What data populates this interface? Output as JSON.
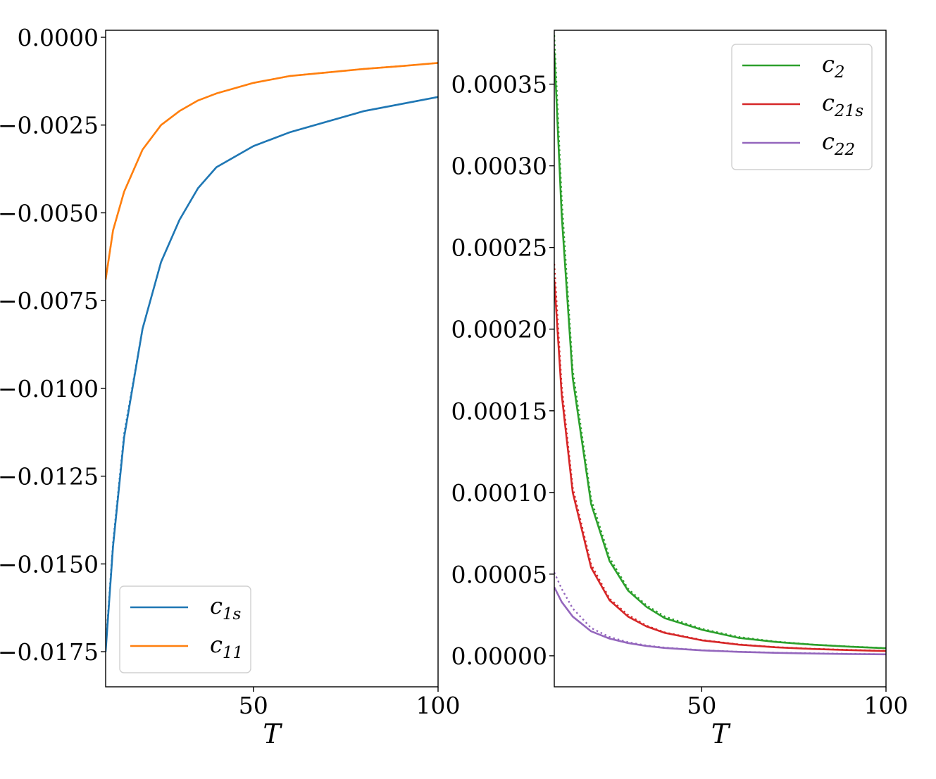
{
  "chart_data": [
    {
      "type": "line",
      "xlabel": "T",
      "ylabel": "",
      "xlim": [
        10,
        100
      ],
      "ylim": [
        -0.0185,
        0.0002
      ],
      "xticks": [
        "50",
        "100"
      ],
      "yticks": [
        "0.0000",
        "−0.0025",
        "−0.0050",
        "−0.0075",
        "−0.0100",
        "−0.0125",
        "−0.0150",
        "−0.0175"
      ],
      "legend_position": "lower-left",
      "series": [
        {
          "name": "c1s",
          "name_base": "c",
          "name_sub": "1s",
          "color": "#1f77b4",
          "x": [
            10,
            12,
            15,
            20,
            25,
            30,
            35,
            40,
            50,
            60,
            70,
            80,
            90,
            100
          ],
          "values": [
            -0.0175,
            -0.0145,
            -0.0114,
            -0.0083,
            -0.0064,
            -0.0052,
            -0.0043,
            -0.0037,
            -0.0031,
            -0.0027,
            -0.0024,
            -0.0021,
            -0.0019,
            -0.0017
          ],
          "dotted_values": [
            -0.0174,
            -0.0144,
            -0.0113,
            -0.0083,
            -0.0064,
            -0.0052,
            -0.0043,
            -0.0037,
            -0.0031,
            -0.0027,
            -0.0024,
            -0.0021,
            -0.0019,
            -0.0017
          ]
        },
        {
          "name": "c11",
          "name_base": "c",
          "name_sub": "11",
          "color": "#ff7f0e",
          "x": [
            10,
            12,
            15,
            20,
            25,
            30,
            35,
            40,
            50,
            60,
            70,
            80,
            90,
            100
          ],
          "values": [
            -0.0069,
            -0.0055,
            -0.0044,
            -0.0032,
            -0.0025,
            -0.0021,
            -0.0018,
            -0.0016,
            -0.0013,
            -0.0011,
            -0.001,
            -0.0009,
            -0.00082,
            -0.00073
          ],
          "dotted_values": [
            -0.0069,
            -0.0055,
            -0.0044,
            -0.0032,
            -0.0025,
            -0.0021,
            -0.0018,
            -0.0016,
            -0.0013,
            -0.0011,
            -0.001,
            -0.0009,
            -0.00082,
            -0.00073
          ]
        }
      ]
    },
    {
      "type": "line",
      "xlabel": "T",
      "ylabel": "",
      "xlim": [
        10,
        100
      ],
      "ylim": [
        -1.9e-05,
        0.000383
      ],
      "xticks": [
        "50",
        "100"
      ],
      "yticks": [
        "0.00000",
        "0.00005",
        "0.00010",
        "0.00015",
        "0.00020",
        "0.00025",
        "0.00030",
        "0.00035"
      ],
      "legend_position": "top-right",
      "series": [
        {
          "name": "c2",
          "name_base": "c",
          "name_sub": "2",
          "color": "#2ca02c",
          "x": [
            10,
            12,
            15,
            20,
            25,
            30,
            35,
            40,
            50,
            60,
            70,
            80,
            90,
            100
          ],
          "values": [
            0.00037,
            0.00027,
            0.00017,
            9.3e-05,
            5.8e-05,
            4e-05,
            3e-05,
            2.3e-05,
            1.6e-05,
            1.1e-05,
            8.5e-06,
            6.8e-06,
            5.6e-06,
            4.6e-06
          ],
          "dotted_values": [
            0.00038,
            0.00028,
            0.000175,
            9.6e-05,
            6e-05,
            4.1e-05,
            3.1e-05,
            2.4e-05,
            1.65e-05,
            1.15e-05,
            8.7e-06,
            6.9e-06,
            5.7e-06,
            4.7e-06
          ]
        },
        {
          "name": "c21s",
          "name_base": "c",
          "name_sub": "21s",
          "color": "#d62728",
          "x": [
            10,
            12,
            15,
            20,
            25,
            30,
            35,
            40,
            50,
            60,
            70,
            80,
            90,
            100
          ],
          "values": [
            0.00023,
            0.00016,
            0.0001,
            5.4e-05,
            3.4e-05,
            2.4e-05,
            1.8e-05,
            1.4e-05,
            9.5e-06,
            6.8e-06,
            5.2e-06,
            4.2e-06,
            3.5e-06,
            2.9e-06
          ],
          "dotted_values": [
            0.00024,
            0.000165,
            0.000103,
            5.6e-05,
            3.5e-05,
            2.5e-05,
            1.85e-05,
            1.43e-05,
            9.7e-06,
            7e-06,
            5.3e-06,
            4.3e-06,
            3.6e-06,
            3e-06
          ]
        },
        {
          "name": "c22",
          "name_base": "c",
          "name_sub": "22",
          "color": "#9467bd",
          "x": [
            10,
            12,
            15,
            20,
            25,
            30,
            35,
            40,
            50,
            60,
            70,
            80,
            90,
            100
          ],
          "values": [
            4.2e-05,
            3.3e-05,
            2.4e-05,
            1.5e-05,
            1.05e-05,
            7.8e-06,
            6e-06,
            4.8e-06,
            3.3e-06,
            2.4e-06,
            1.8e-06,
            1.4e-06,
            1.1e-06,
            9e-07
          ],
          "dotted_values": [
            5.1e-05,
            4.1e-05,
            2.9e-05,
            1.7e-05,
            1.15e-05,
            8.3e-06,
            6.3e-06,
            5e-06,
            3.4e-06,
            2.5e-06,
            1.9e-06,
            1.5e-06,
            1.2e-06,
            9e-07
          ]
        }
      ]
    }
  ]
}
